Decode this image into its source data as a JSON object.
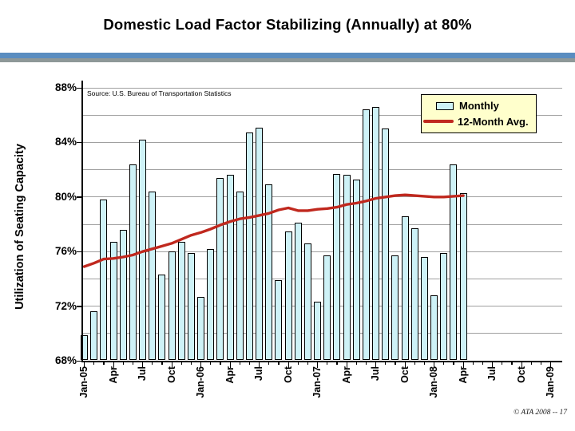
{
  "slide": {
    "title": "Domestic Load Factor Stabilizing (Annually) at 80%",
    "footer": "© ATA 2008 -- 17"
  },
  "colors": {
    "divider_blue": "#5A8DC0",
    "divider_gray": "#8E9898",
    "grid": "#A0A0A0",
    "bar_fill": "#CEF2F7",
    "bar_border": "#000000",
    "avg_line": "#C0281E",
    "legend_bg": "#FFFFCC"
  },
  "chart_data": {
    "type": "bar",
    "title": "Domestic Load Factor Stabilizing (Annually) at 80%",
    "source_note": "Source: U.S. Bureau of Transportation Statistics",
    "ylabel": "Utilization of Seating Capacity",
    "xlabel": "",
    "ylim": [
      68,
      88
    ],
    "y_tick_values": [
      68,
      72,
      76,
      80,
      84,
      88
    ],
    "y_tick_labels": [
      "68%",
      "72%",
      "76%",
      "80%",
      "84%",
      "88%"
    ],
    "gridline_step_pct": 2,
    "grid": true,
    "legend_position": "top-right",
    "x_axis_months_total": 49,
    "x_tick_label_step": 3,
    "x_tick_labels": [
      "Jan-05",
      "Apr",
      "Jul",
      "Oct",
      "Jan-06",
      "Apr",
      "Jul",
      "Oct",
      "Jan-07",
      "Apr",
      "Jul",
      "Oct",
      "Jan-08",
      "Apr",
      "Jul",
      "Oct",
      "Jan-09"
    ],
    "categories": [
      "Jan-05",
      "Feb-05",
      "Mar-05",
      "Apr-05",
      "May-05",
      "Jun-05",
      "Jul-05",
      "Aug-05",
      "Sep-05",
      "Oct-05",
      "Nov-05",
      "Dec-05",
      "Jan-06",
      "Feb-06",
      "Mar-06",
      "Apr-06",
      "May-06",
      "Jun-06",
      "Jul-06",
      "Aug-06",
      "Sep-06",
      "Oct-06",
      "Nov-06",
      "Dec-06",
      "Jan-07",
      "Feb-07",
      "Mar-07",
      "Apr-07",
      "May-07",
      "Jun-07",
      "Jul-07",
      "Aug-07",
      "Sep-07",
      "Oct-07",
      "Nov-07",
      "Dec-07",
      "Jan-08",
      "Feb-08",
      "Mar-08",
      "Apr-08"
    ],
    "series": [
      {
        "name": "Monthly",
        "type": "bar",
        "values": [
          69.9,
          71.6,
          79.8,
          76.7,
          77.6,
          82.4,
          84.2,
          80.4,
          74.3,
          76.0,
          76.7,
          75.9,
          72.7,
          76.2,
          81.4,
          81.6,
          80.4,
          84.7,
          85.1,
          80.9,
          73.9,
          77.5,
          78.1,
          76.6,
          72.3,
          75.7,
          81.7,
          81.6,
          81.3,
          86.4,
          86.6,
          85.0,
          75.7,
          78.6,
          77.7,
          75.6,
          72.8,
          75.9,
          82.4,
          80.3
        ]
      },
      {
        "name": "12-Month Avg.",
        "type": "line",
        "values": [
          74.9,
          75.15,
          75.45,
          75.5,
          75.6,
          75.75,
          76.0,
          76.2,
          76.4,
          76.6,
          76.9,
          77.2,
          77.4,
          77.65,
          77.95,
          78.2,
          78.4,
          78.5,
          78.65,
          78.8,
          79.05,
          79.2,
          79.0,
          79.0,
          79.1,
          79.15,
          79.25,
          79.45,
          79.55,
          79.7,
          79.9,
          80.0,
          80.1,
          80.15,
          80.1,
          80.05,
          80.0,
          80.0,
          80.05,
          80.1
        ]
      }
    ]
  }
}
